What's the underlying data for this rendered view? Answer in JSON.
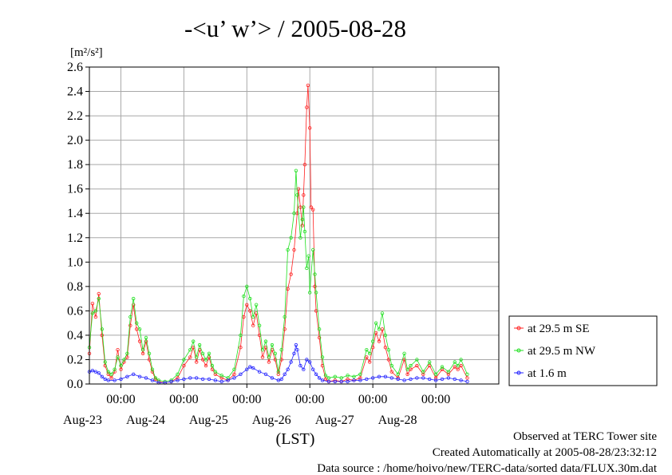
{
  "chart_data": {
    "type": "line",
    "title": "-<u’ w’> / 2005-08-28",
    "ylabel": "[m²/s²]",
    "xlabel": "(LST)",
    "ylim": [
      0,
      2.6
    ],
    "yticks": [
      "0.0",
      "0.2",
      "0.4",
      "0.6",
      "0.8",
      "1.0",
      "1.2",
      "1.4",
      "1.6",
      "1.8",
      "2.0",
      "2.2",
      "2.4",
      "2.6"
    ],
    "x_range_days": [
      "2005-08-22 12:00",
      "2005-08-28 24:00"
    ],
    "x_time_ticks": [
      {
        "at": "2005-08-23 00:00",
        "time": "00:00",
        "day": "Aug-23"
      },
      {
        "at": "2005-08-24 00:00",
        "time": "00:00",
        "day": "Aug-24"
      },
      {
        "at": "2005-08-25 00:00",
        "time": "00:00",
        "day": "Aug-25"
      },
      {
        "at": "2005-08-26 00:00",
        "time": "00:00",
        "day": "Aug-26"
      },
      {
        "at": "2005-08-27 00:00",
        "time": "00:00",
        "day": "Aug-27"
      },
      {
        "at": "2005-08-28 00:00",
        "time": "00:00",
        "day": "Aug-28"
      }
    ],
    "grid": true,
    "legend_position": "right",
    "series": [
      {
        "name": "at 29.5 m SE",
        "color": "#ff2020",
        "values": [
          [
            0.0,
            0.25
          ],
          [
            0.05,
            0.66
          ],
          [
            0.1,
            0.55
          ],
          [
            0.15,
            0.74
          ],
          [
            0.2,
            0.4
          ],
          [
            0.25,
            0.15
          ],
          [
            0.3,
            0.08
          ],
          [
            0.35,
            0.05
          ],
          [
            0.4,
            0.1
          ],
          [
            0.45,
            0.28
          ],
          [
            0.5,
            0.12
          ],
          [
            0.55,
            0.18
          ],
          [
            0.6,
            0.22
          ],
          [
            0.65,
            0.48
          ],
          [
            0.7,
            0.65
          ],
          [
            0.75,
            0.45
          ],
          [
            0.8,
            0.35
          ],
          [
            0.85,
            0.25
          ],
          [
            0.9,
            0.35
          ],
          [
            0.95,
            0.2
          ],
          [
            1.0,
            0.1
          ],
          [
            1.05,
            0.04
          ],
          [
            1.1,
            0.02
          ],
          [
            1.2,
            0.01
          ],
          [
            1.3,
            0.02
          ],
          [
            1.4,
            0.05
          ],
          [
            1.5,
            0.15
          ],
          [
            1.6,
            0.22
          ],
          [
            1.65,
            0.3
          ],
          [
            1.7,
            0.18
          ],
          [
            1.75,
            0.28
          ],
          [
            1.8,
            0.2
          ],
          [
            1.85,
            0.15
          ],
          [
            1.9,
            0.22
          ],
          [
            1.95,
            0.12
          ],
          [
            2.0,
            0.08
          ],
          [
            2.1,
            0.05
          ],
          [
            2.2,
            0.03
          ],
          [
            2.3,
            0.08
          ],
          [
            2.4,
            0.3
          ],
          [
            2.45,
            0.55
          ],
          [
            2.5,
            0.65
          ],
          [
            2.55,
            0.6
          ],
          [
            2.6,
            0.48
          ],
          [
            2.65,
            0.58
          ],
          [
            2.7,
            0.4
          ],
          [
            2.75,
            0.22
          ],
          [
            2.8,
            0.3
          ],
          [
            2.85,
            0.18
          ],
          [
            2.9,
            0.28
          ],
          [
            2.95,
            0.2
          ],
          [
            3.0,
            0.08
          ],
          [
            3.05,
            0.2
          ],
          [
            3.1,
            0.45
          ],
          [
            3.15,
            0.78
          ],
          [
            3.2,
            0.9
          ],
          [
            3.25,
            1.1
          ],
          [
            3.3,
            1.4
          ],
          [
            3.32,
            1.6
          ],
          [
            3.35,
            1.45
          ],
          [
            3.38,
            1.3
          ],
          [
            3.4,
            1.55
          ],
          [
            3.42,
            1.8
          ],
          [
            3.45,
            2.27
          ],
          [
            3.47,
            2.45
          ],
          [
            3.5,
            2.1
          ],
          [
            3.52,
            1.45
          ],
          [
            3.55,
            1.43
          ],
          [
            3.58,
            0.8
          ],
          [
            3.6,
            0.6
          ],
          [
            3.65,
            0.38
          ],
          [
            3.7,
            0.15
          ],
          [
            3.75,
            0.04
          ],
          [
            3.8,
            0.02
          ],
          [
            3.9,
            0.03
          ],
          [
            4.0,
            0.02
          ],
          [
            4.1,
            0.04
          ],
          [
            4.2,
            0.03
          ],
          [
            4.3,
            0.05
          ],
          [
            4.4,
            0.22
          ],
          [
            4.45,
            0.18
          ],
          [
            4.5,
            0.3
          ],
          [
            4.55,
            0.42
          ],
          [
            4.6,
            0.35
          ],
          [
            4.65,
            0.45
          ],
          [
            4.7,
            0.3
          ],
          [
            4.75,
            0.2
          ],
          [
            4.8,
            0.1
          ],
          [
            4.9,
            0.05
          ],
          [
            5.0,
            0.2
          ],
          [
            5.05,
            0.08
          ],
          [
            5.1,
            0.12
          ],
          [
            5.2,
            0.15
          ],
          [
            5.3,
            0.08
          ],
          [
            5.4,
            0.15
          ],
          [
            5.5,
            0.05
          ],
          [
            5.6,
            0.12
          ],
          [
            5.7,
            0.08
          ],
          [
            5.8,
            0.14
          ],
          [
            5.85,
            0.12
          ],
          [
            5.9,
            0.15
          ],
          [
            6.0,
            0.05
          ]
        ]
      },
      {
        "name": "at 29.5 m NW",
        "color": "#20e020",
        "values": [
          [
            0.0,
            0.3
          ],
          [
            0.05,
            0.58
          ],
          [
            0.1,
            0.6
          ],
          [
            0.15,
            0.7
          ],
          [
            0.2,
            0.45
          ],
          [
            0.25,
            0.18
          ],
          [
            0.3,
            0.1
          ],
          [
            0.35,
            0.08
          ],
          [
            0.4,
            0.12
          ],
          [
            0.45,
            0.22
          ],
          [
            0.5,
            0.15
          ],
          [
            0.55,
            0.2
          ],
          [
            0.6,
            0.25
          ],
          [
            0.65,
            0.55
          ],
          [
            0.7,
            0.7
          ],
          [
            0.75,
            0.5
          ],
          [
            0.8,
            0.45
          ],
          [
            0.85,
            0.28
          ],
          [
            0.9,
            0.38
          ],
          [
            0.95,
            0.25
          ],
          [
            1.0,
            0.12
          ],
          [
            1.05,
            0.05
          ],
          [
            1.1,
            0.03
          ],
          [
            1.2,
            0.02
          ],
          [
            1.3,
            0.03
          ],
          [
            1.4,
            0.08
          ],
          [
            1.5,
            0.2
          ],
          [
            1.6,
            0.28
          ],
          [
            1.65,
            0.35
          ],
          [
            1.7,
            0.22
          ],
          [
            1.75,
            0.32
          ],
          [
            1.8,
            0.25
          ],
          [
            1.85,
            0.2
          ],
          [
            1.9,
            0.25
          ],
          [
            1.95,
            0.15
          ],
          [
            2.0,
            0.1
          ],
          [
            2.1,
            0.07
          ],
          [
            2.2,
            0.05
          ],
          [
            2.3,
            0.12
          ],
          [
            2.4,
            0.4
          ],
          [
            2.45,
            0.72
          ],
          [
            2.5,
            0.8
          ],
          [
            2.55,
            0.7
          ],
          [
            2.6,
            0.55
          ],
          [
            2.65,
            0.65
          ],
          [
            2.7,
            0.48
          ],
          [
            2.75,
            0.28
          ],
          [
            2.8,
            0.35
          ],
          [
            2.85,
            0.22
          ],
          [
            2.9,
            0.32
          ],
          [
            2.95,
            0.25
          ],
          [
            3.0,
            0.1
          ],
          [
            3.05,
            0.28
          ],
          [
            3.1,
            0.55
          ],
          [
            3.15,
            1.1
          ],
          [
            3.2,
            1.2
          ],
          [
            3.25,
            1.4
          ],
          [
            3.28,
            1.75
          ],
          [
            3.3,
            1.55
          ],
          [
            3.35,
            1.2
          ],
          [
            3.38,
            1.35
          ],
          [
            3.4,
            1.45
          ],
          [
            3.42,
            1.25
          ],
          [
            3.45,
            0.95
          ],
          [
            3.48,
            1.05
          ],
          [
            3.5,
            0.75
          ],
          [
            3.55,
            1.1
          ],
          [
            3.58,
            0.9
          ],
          [
            3.6,
            0.75
          ],
          [
            3.65,
            0.45
          ],
          [
            3.7,
            0.22
          ],
          [
            3.75,
            0.07
          ],
          [
            3.8,
            0.05
          ],
          [
            3.9,
            0.06
          ],
          [
            4.0,
            0.05
          ],
          [
            4.1,
            0.07
          ],
          [
            4.2,
            0.06
          ],
          [
            4.3,
            0.08
          ],
          [
            4.4,
            0.28
          ],
          [
            4.45,
            0.25
          ],
          [
            4.5,
            0.35
          ],
          [
            4.55,
            0.5
          ],
          [
            4.6,
            0.45
          ],
          [
            4.65,
            0.58
          ],
          [
            4.7,
            0.4
          ],
          [
            4.75,
            0.28
          ],
          [
            4.8,
            0.15
          ],
          [
            4.9,
            0.08
          ],
          [
            5.0,
            0.25
          ],
          [
            5.05,
            0.12
          ],
          [
            5.1,
            0.15
          ],
          [
            5.2,
            0.2
          ],
          [
            5.3,
            0.1
          ],
          [
            5.4,
            0.18
          ],
          [
            5.5,
            0.08
          ],
          [
            5.6,
            0.14
          ],
          [
            5.7,
            0.1
          ],
          [
            5.8,
            0.18
          ],
          [
            5.85,
            0.15
          ],
          [
            5.9,
            0.2
          ],
          [
            6.0,
            0.08
          ]
        ]
      },
      {
        "name": "at 1.6 m",
        "color": "#2020ff",
        "values": [
          [
            0.0,
            0.1
          ],
          [
            0.05,
            0.11
          ],
          [
            0.1,
            0.1
          ],
          [
            0.15,
            0.09
          ],
          [
            0.2,
            0.06
          ],
          [
            0.25,
            0.04
          ],
          [
            0.3,
            0.03
          ],
          [
            0.4,
            0.03
          ],
          [
            0.5,
            0.04
          ],
          [
            0.6,
            0.06
          ],
          [
            0.7,
            0.08
          ],
          [
            0.8,
            0.06
          ],
          [
            0.9,
            0.05
          ],
          [
            1.0,
            0.03
          ],
          [
            1.1,
            0.01
          ],
          [
            1.2,
            0.01
          ],
          [
            1.3,
            0.02
          ],
          [
            1.4,
            0.03
          ],
          [
            1.5,
            0.04
          ],
          [
            1.6,
            0.05
          ],
          [
            1.7,
            0.05
          ],
          [
            1.8,
            0.04
          ],
          [
            1.9,
            0.04
          ],
          [
            2.0,
            0.03
          ],
          [
            2.1,
            0.02
          ],
          [
            2.2,
            0.03
          ],
          [
            2.3,
            0.05
          ],
          [
            2.4,
            0.08
          ],
          [
            2.5,
            0.12
          ],
          [
            2.55,
            0.14
          ],
          [
            2.6,
            0.13
          ],
          [
            2.7,
            0.1
          ],
          [
            2.8,
            0.08
          ],
          [
            2.9,
            0.05
          ],
          [
            3.0,
            0.03
          ],
          [
            3.05,
            0.04
          ],
          [
            3.1,
            0.08
          ],
          [
            3.15,
            0.12
          ],
          [
            3.2,
            0.18
          ],
          [
            3.25,
            0.25
          ],
          [
            3.28,
            0.32
          ],
          [
            3.3,
            0.28
          ],
          [
            3.35,
            0.15
          ],
          [
            3.4,
            0.12
          ],
          [
            3.45,
            0.2
          ],
          [
            3.5,
            0.18
          ],
          [
            3.55,
            0.12
          ],
          [
            3.6,
            0.08
          ],
          [
            3.65,
            0.05
          ],
          [
            3.7,
            0.03
          ],
          [
            3.8,
            0.02
          ],
          [
            3.9,
            0.02
          ],
          [
            4.0,
            0.02
          ],
          [
            4.1,
            0.02
          ],
          [
            4.2,
            0.03
          ],
          [
            4.3,
            0.03
          ],
          [
            4.4,
            0.04
          ],
          [
            4.5,
            0.05
          ],
          [
            4.6,
            0.06
          ],
          [
            4.7,
            0.06
          ],
          [
            4.8,
            0.05
          ],
          [
            4.9,
            0.04
          ],
          [
            5.0,
            0.03
          ],
          [
            5.1,
            0.04
          ],
          [
            5.2,
            0.05
          ],
          [
            5.3,
            0.05
          ],
          [
            5.4,
            0.04
          ],
          [
            5.5,
            0.03
          ],
          [
            5.6,
            0.04
          ],
          [
            5.7,
            0.05
          ],
          [
            5.8,
            0.04
          ],
          [
            5.9,
            0.03
          ],
          [
            6.0,
            0.02
          ]
        ]
      }
    ]
  },
  "footer": {
    "line1": "Observed at TERC Tower site",
    "line2": "Created Automatically at 2005-08-28/23:32:12",
    "line3": "Data source : /home/hoivo/new/TERC-data/sorted  data/FLUX.30m.dat"
  }
}
